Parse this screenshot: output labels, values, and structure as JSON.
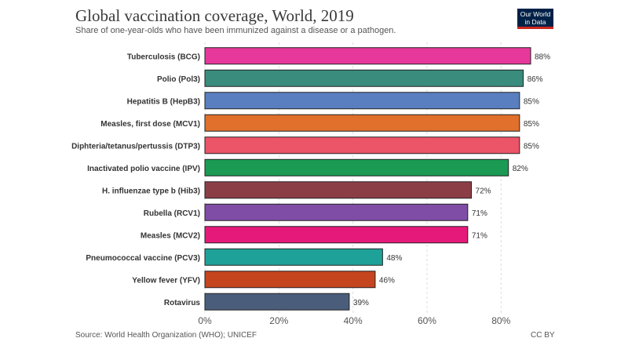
{
  "header": {
    "title": "Global vaccination coverage, World, 2019",
    "subtitle": "Share of one-year-olds who have been immunized against a disease or a pathogen.",
    "logo_line1": "Our World",
    "logo_line2": "in Data"
  },
  "footer": {
    "source": "Source: World Health Organization (WHO); UNICEF",
    "license": "CC BY"
  },
  "colors": {
    "grid": "#dddddd",
    "axis_text": "#555555",
    "label_text": "#333333",
    "bar_stroke": "#222222"
  },
  "chart_data": {
    "type": "bar",
    "orientation": "horizontal",
    "title": "Global vaccination coverage, World, 2019",
    "xlabel": "",
    "ylabel": "",
    "xlim": [
      0,
      88
    ],
    "xticks": [
      0,
      20,
      40,
      60,
      80
    ],
    "tick_suffix": "%",
    "grid": true,
    "categories": [
      "Tuberculosis (BCG)",
      "Polio (Pol3)",
      "Hepatitis B (HepB3)",
      "Measles, first dose (MCV1)",
      "Diphteria/tetanus/pertussis (DTP3)",
      "Inactivated polio vaccine (IPV)",
      "H. influenzae type b (Hib3)",
      "Rubella (RCV1)",
      "Measles (MCV2)",
      "Pneumococcal vaccine (PCV3)",
      "Yellow fever (YFV)",
      "Rotavirus"
    ],
    "values": [
      88,
      86,
      85,
      85,
      85,
      82,
      72,
      71,
      71,
      48,
      46,
      39
    ],
    "value_labels": [
      "88%",
      "86%",
      "85%",
      "85%",
      "85%",
      "82%",
      "72%",
      "71%",
      "71%",
      "48%",
      "46%",
      "39%"
    ],
    "bar_colors": [
      "#e6399b",
      "#3a8c7d",
      "#5a7fc0",
      "#e0702b",
      "#ec5468",
      "#1b9a54",
      "#8c3e46",
      "#7f4ca6",
      "#e5197a",
      "#1ea199",
      "#c4451e",
      "#4a5e7c"
    ]
  }
}
